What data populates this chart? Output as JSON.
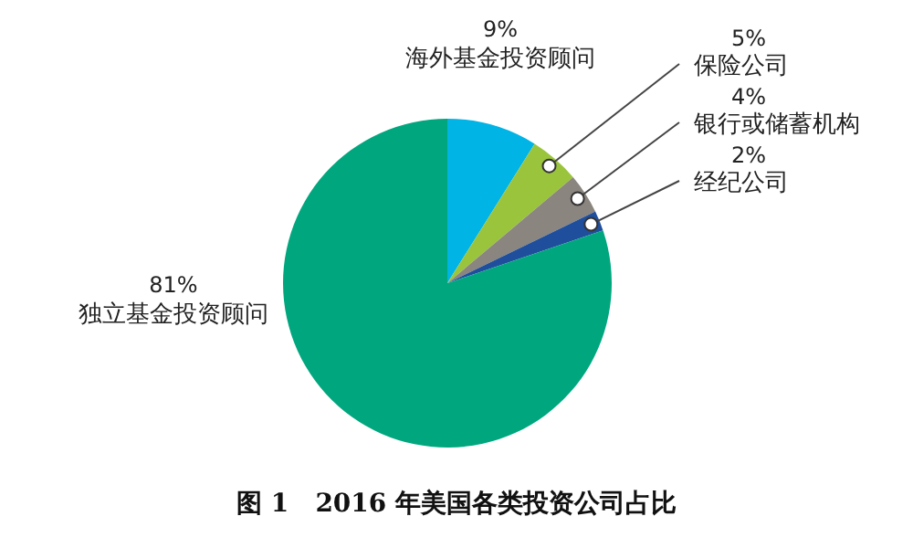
{
  "chart_data": {
    "type": "pie",
    "title": "图 1   2016 年美国各类投资公司占比",
    "categories": [
      "海外基金投资顾问",
      "保险公司",
      "银行或储蓄机构",
      "经纪公司",
      "独立基金投资顾问"
    ],
    "values": [
      9,
      5,
      4,
      2,
      81
    ],
    "colors": [
      "#00b4e6",
      "#9ac43c",
      "#8a857e",
      "#1f4e9c",
      "#00a77e"
    ],
    "value_labels": [
      "9%",
      "5%",
      "4%",
      "2%",
      "81%"
    ],
    "legend": false
  }
}
